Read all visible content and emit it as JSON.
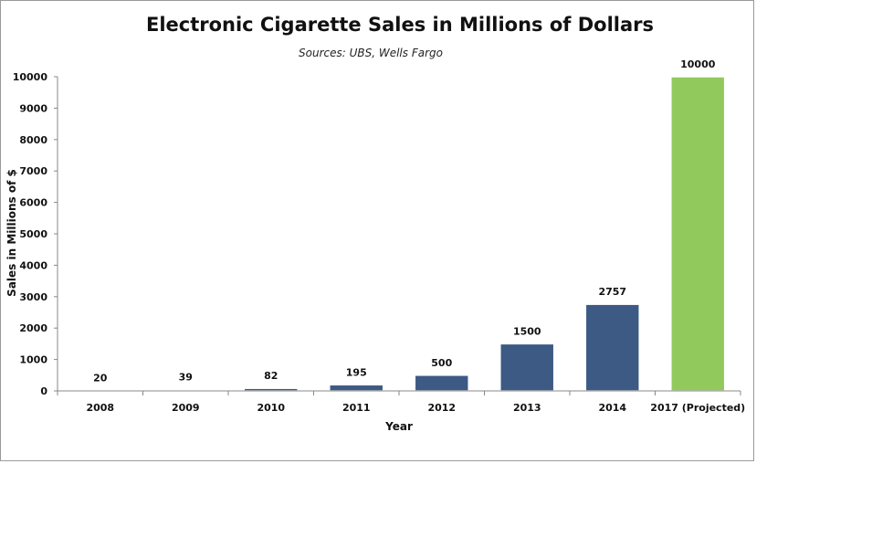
{
  "chart_data": {
    "type": "bar",
    "title": "Electronic Cigarette Sales in Millions of Dollars",
    "subtitle": "Sources: UBS, Wells Fargo",
    "xlabel": "Year",
    "ylabel": "Sales in Millions of $",
    "categories": [
      "2008",
      "2009",
      "2010",
      "2011",
      "2012",
      "2013",
      "2014",
      "2017 (Projected)"
    ],
    "values": [
      20,
      39,
      82,
      195,
      500,
      1500,
      2757,
      10000
    ],
    "data_labels": [
      "20",
      "39",
      "82",
      "195",
      "500",
      "1500",
      "2757",
      "10000"
    ],
    "ylim": [
      0,
      10000
    ],
    "yticks": [
      "0",
      "1000",
      "2000",
      "3000",
      "4000",
      "5000",
      "6000",
      "7000",
      "8000",
      "9000",
      "10000"
    ],
    "grid": false,
    "legend": "none",
    "colors": {
      "actual": "#3c5a84",
      "projected": "#92c95c"
    }
  }
}
